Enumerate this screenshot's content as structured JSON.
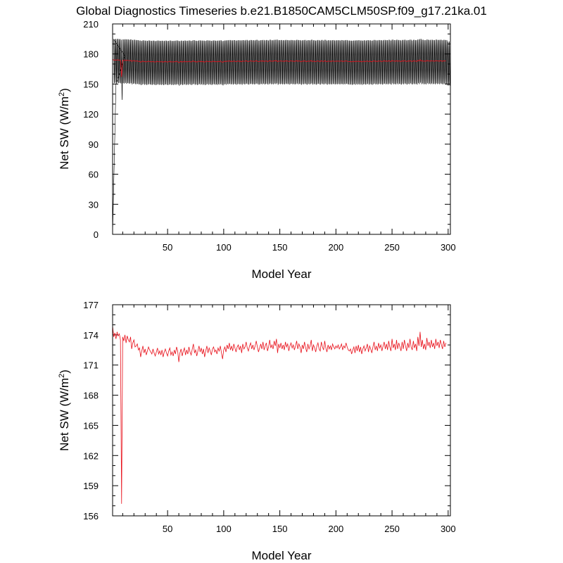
{
  "figure": {
    "title": "Global Diagnostics Timeseries b.e21.B1850CAM5CLM50SP.f09_g17.21ka.01"
  },
  "chart_data": [
    {
      "type": "line",
      "xlabel": "Model Year",
      "ylabel_main": "Net SW (W/m",
      "ylabel_sup": "2",
      "ylabel_close": ")",
      "xlim": [
        1,
        302
      ],
      "ylim": [
        0,
        210
      ],
      "xticks": [
        50,
        100,
        150,
        200,
        250,
        300
      ],
      "xtick_labels": [
        "50",
        "100",
        "150",
        "200",
        "250",
        "300"
      ],
      "yticks": [
        0,
        30,
        60,
        90,
        120,
        150,
        180,
        210
      ],
      "ytick_labels": [
        "0",
        "30",
        "60",
        "90",
        "120",
        "150",
        "180",
        "210"
      ],
      "x_minor_step": 10,
      "y_minor_step": 10,
      "series": [
        {
          "color": "#000000",
          "kind": "monthly",
          "start": [
            1,
            0
          ],
          "spinup": [
            [
              4,
              150
            ],
            [
              7,
              160
            ],
            [
              10,
              172
            ],
            [
              12,
              178
            ]
          ],
          "osc_center": 171.5,
          "osc_amplitude": 22.5,
          "values_per_year": 12
        },
        {
          "color": "#e8101a",
          "kind": "annual_mean",
          "values": []
        }
      ]
    },
    {
      "type": "line",
      "xlabel": "Model Year",
      "ylabel_main": "Net SW (W/m",
      "ylabel_sup": "2",
      "ylabel_close": ")",
      "xlim": [
        1,
        302
      ],
      "ylim": [
        156,
        177
      ],
      "xticks": [
        50,
        100,
        150,
        200,
        250,
        300
      ],
      "xtick_labels": [
        "50",
        "100",
        "150",
        "200",
        "250",
        "300"
      ],
      "yticks": [
        156,
        159,
        162,
        165,
        168,
        171,
        174,
        177
      ],
      "ytick_labels": [
        "156",
        "159",
        "162",
        "165",
        "168",
        "171",
        "174",
        "177"
      ],
      "x_minor_step": 10,
      "y_minor_step": 1,
      "series": [
        {
          "color": "#e8101a",
          "kind": "annual_mean",
          "x_start": 1,
          "values": [
            174.9,
            173.8,
            174.2,
            173.6,
            174.3,
            173.9,
            174.1,
            173.5,
            157.2,
            173.8,
            173.4,
            174.0,
            173.2,
            173.9,
            173.5,
            173.3,
            173.8,
            172.6,
            173.2,
            173.5,
            172.8,
            172.9,
            173.1,
            172.5,
            172.7,
            171.8,
            172.4,
            172.9,
            172.2,
            172.6,
            172.0,
            172.4,
            172.8,
            172.5,
            172.3,
            172.1,
            172.6,
            172.2,
            171.9,
            172.3,
            172.7,
            172.1,
            172.4,
            172.0,
            172.5,
            171.8,
            172.3,
            172.6,
            172.2,
            171.9,
            172.4,
            172.7,
            172.0,
            172.3,
            171.9,
            172.5,
            172.1,
            172.8,
            172.4,
            171.3,
            172.2,
            172.6,
            171.9,
            172.4,
            172.7,
            172.0,
            172.5,
            172.1,
            172.8,
            172.3,
            172.0,
            172.6,
            173.1,
            172.2,
            172.5,
            171.9,
            172.4,
            172.9,
            172.3,
            172.7,
            172.1,
            172.6,
            171.8,
            172.4,
            172.9,
            172.2,
            172.7,
            172.4,
            172.0,
            172.6,
            172.8,
            172.3,
            172.5,
            172.1,
            172.7,
            172.4,
            172.9,
            172.2,
            171.6,
            172.5,
            172.8,
            172.3,
            173.0,
            172.6,
            173.2,
            172.5,
            172.9,
            172.4,
            173.1,
            172.7,
            172.3,
            172.8,
            173.0,
            172.5,
            172.9,
            172.2,
            173.1,
            172.6,
            172.8,
            173.3,
            172.7,
            172.4,
            172.9,
            173.2,
            172.6,
            173.0,
            172.5,
            172.9,
            173.4,
            172.8,
            172.3,
            172.7,
            173.1,
            172.6,
            173.3,
            172.5,
            172.9,
            173.2,
            172.4,
            172.8,
            173.5,
            172.7,
            173.0,
            172.6,
            173.4,
            172.9,
            173.6,
            172.2,
            173.1,
            172.7,
            173.2,
            172.6,
            173.0,
            172.5,
            173.3,
            172.8,
            173.1,
            172.4,
            172.9,
            173.2,
            172.7,
            173.0,
            172.5,
            172.9,
            173.4,
            172.6,
            173.1,
            172.8,
            172.2,
            173.0,
            172.6,
            173.3,
            172.7,
            172.3,
            173.1,
            172.6,
            172.9,
            173.5,
            172.4,
            173.0,
            172.7,
            172.3,
            172.9,
            173.2,
            172.6,
            172.4,
            173.3,
            172.8,
            172.5,
            173.4,
            172.7,
            172.3,
            173.0,
            172.6,
            172.9,
            172.5,
            173.1,
            172.8,
            172.6,
            172.9,
            172.7,
            173.0,
            172.6,
            172.8,
            173.1,
            172.5,
            172.9,
            172.7,
            173.2,
            172.8,
            172.5,
            172.4,
            172.6,
            172.1,
            172.5,
            172.8,
            172.2,
            172.9,
            172.4,
            173.0,
            172.3,
            172.8,
            172.1,
            172.6,
            172.9,
            172.4,
            172.7,
            173.1,
            172.3,
            172.9,
            172.6,
            172.2,
            172.8,
            173.3,
            172.5,
            172.9,
            172.4,
            173.2,
            172.7,
            173.0,
            172.4,
            172.9,
            173.3,
            172.6,
            173.1,
            172.5,
            173.4,
            172.8,
            172.4,
            173.6,
            172.7,
            173.1,
            172.5,
            173.5,
            172.6,
            173.2,
            172.8,
            172.4,
            173.3,
            172.6,
            173.5,
            172.9,
            172.4,
            173.2,
            172.7,
            173.6,
            172.8,
            172.5,
            173.4,
            172.7,
            173.1,
            172.4,
            173.8,
            172.9,
            174.3,
            172.8,
            173.5,
            172.6,
            173.1,
            172.5,
            173.7,
            172.9,
            173.3,
            172.7,
            173.5,
            172.8,
            173.2,
            172.6,
            173.6,
            172.9,
            173.3,
            172.7,
            173.5,
            173.0,
            172.6,
            173.4,
            172.8,
            173.2
          ]
        }
      ]
    }
  ]
}
